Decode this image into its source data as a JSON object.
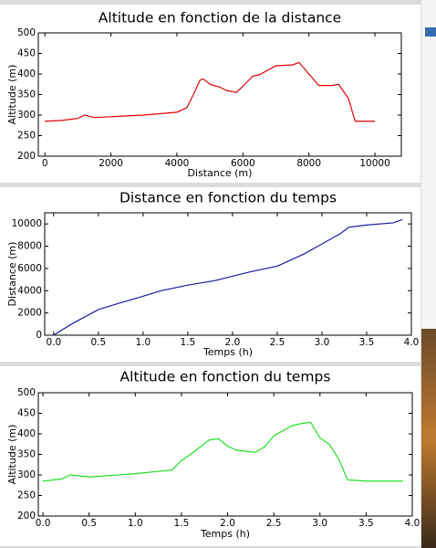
{
  "chart_data": [
    {
      "type": "line",
      "title": "Altitude en fonction de la distance",
      "xlabel": "Distance (m)",
      "ylabel": "Altitude (m)",
      "x": [
        0,
        500,
        1000,
        1200,
        1500,
        2000,
        3000,
        4000,
        4300,
        4500,
        4700,
        4800,
        5000,
        5300,
        5500,
        5800,
        6000,
        6300,
        6500,
        7000,
        7500,
        7700,
        8000,
        8300,
        8700,
        8900,
        9200,
        9400,
        10000
      ],
      "values": [
        285,
        287,
        292,
        300,
        294,
        296,
        300,
        307,
        318,
        350,
        385,
        388,
        375,
        368,
        360,
        355,
        370,
        395,
        398,
        420,
        422,
        428,
        400,
        372,
        372,
        375,
        340,
        285,
        285
      ],
      "color": "#e00000",
      "xlim": [
        -200,
        10800
      ],
      "xticks": [
        0,
        2000,
        4000,
        6000,
        8000,
        10000
      ],
      "ylim": [
        200,
        500
      ],
      "yticks": [
        200,
        250,
        300,
        350,
        400,
        450,
        500
      ],
      "grid": false
    },
    {
      "type": "line",
      "title": "Distance en fonction du temps",
      "xlabel": "Temps (h)",
      "ylabel": "Distance (m)",
      "x": [
        0,
        0.2,
        0.5,
        0.7,
        1.0,
        1.2,
        1.5,
        1.8,
        2.0,
        2.2,
        2.5,
        2.8,
        3.0,
        3.2,
        3.3,
        3.5,
        3.8,
        3.9
      ],
      "values": [
        0,
        1000,
        2300,
        2800,
        3500,
        4000,
        4500,
        4900,
        5300,
        5700,
        6200,
        7300,
        8200,
        9100,
        9700,
        9900,
        10100,
        10400
      ],
      "color": "#1a1aa0",
      "xlim": [
        -0.1,
        4.0
      ],
      "xticks": [
        {
          "value": 0,
          "label": "0.0"
        },
        0.5,
        {
          "value": 1,
          "label": "1.0"
        },
        1.5,
        {
          "value": 2,
          "label": "2.0"
        },
        2.5,
        {
          "value": 3,
          "label": "3.0"
        },
        3.5,
        {
          "value": 4,
          "label": "4.0"
        }
      ],
      "ylim": [
        0,
        11000
      ],
      "yticks": [
        0,
        2000,
        4000,
        6000,
        8000,
        10000
      ],
      "grid": false
    },
    {
      "type": "line",
      "title": "Altitude en fonction du temps",
      "xlabel": "Temps (h)",
      "ylabel": "Altitude (m)",
      "x": [
        0,
        0.2,
        0.3,
        0.5,
        1.0,
        1.4,
        1.5,
        1.6,
        1.8,
        1.9,
        2.0,
        2.1,
        2.3,
        2.4,
        2.5,
        2.7,
        2.8,
        2.9,
        3.0,
        3.1,
        3.2,
        3.3,
        3.5,
        3.9
      ],
      "values": [
        285,
        290,
        300,
        295,
        303,
        312,
        335,
        350,
        385,
        388,
        370,
        360,
        355,
        368,
        395,
        420,
        425,
        428,
        390,
        375,
        340,
        288,
        285,
        285
      ],
      "color": "#22dd22",
      "xlim": [
        -0.05,
        4.0
      ],
      "xticks": [
        {
          "value": 0,
          "label": "0.0"
        },
        0.5,
        {
          "value": 1,
          "label": "1.0"
        },
        1.5,
        {
          "value": 2,
          "label": "2.0"
        },
        2.5,
        {
          "value": 3,
          "label": "3.0"
        },
        3.5,
        {
          "value": 4,
          "label": "4.0"
        }
      ],
      "ylim": [
        200,
        500
      ],
      "yticks": [
        200,
        250,
        300,
        350,
        400,
        450,
        500
      ],
      "grid": false
    }
  ]
}
